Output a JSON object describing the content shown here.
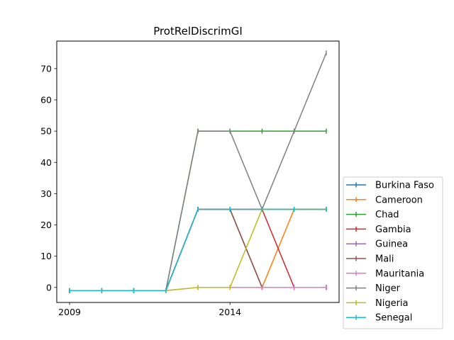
{
  "chart_data": {
    "type": "line",
    "title": "ProtRelDiscrimGI",
    "xlabel": "",
    "ylabel": "",
    "x": [
      2009,
      2010,
      2011,
      2012,
      2013,
      2014,
      2015,
      2016,
      2017
    ],
    "xticks": [
      2009,
      2014
    ],
    "yticks": [
      0,
      10,
      20,
      30,
      40,
      50,
      60,
      70
    ],
    "xlim": [
      2008.6,
      2017.4
    ],
    "ylim": [
      -4.8,
      78.8
    ],
    "grid": false,
    "legend_position": "outside-right-bottom",
    "marker": "|",
    "series": [
      {
        "name": "Burkina Faso",
        "color": "#1f77b4",
        "values": [
          -1,
          -1,
          -1,
          -1,
          25,
          25,
          25,
          25,
          25
        ]
      },
      {
        "name": "Cameroon",
        "color": "#ff7f0e",
        "values": [
          -1,
          -1,
          -1,
          -1,
          25,
          25,
          0,
          25,
          25
        ]
      },
      {
        "name": "Chad",
        "color": "#2ca02c",
        "values": [
          -1,
          -1,
          -1,
          -1,
          50,
          50,
          50,
          50,
          50
        ]
      },
      {
        "name": "Gambia",
        "color": "#d62728",
        "values": [
          -1,
          -1,
          -1,
          -1,
          25,
          25,
          25,
          0,
          0
        ]
      },
      {
        "name": "Guinea",
        "color": "#9467bd",
        "values": [
          -1,
          -1,
          -1,
          -1,
          25,
          25,
          0,
          0,
          0
        ]
      },
      {
        "name": "Mali",
        "color": "#8c564b",
        "values": [
          -1,
          -1,
          -1,
          -1,
          25,
          25,
          0,
          0,
          0
        ]
      },
      {
        "name": "Mauritania",
        "color": "#e377c2",
        "values": [
          -1,
          -1,
          -1,
          -1,
          0,
          0,
          0,
          0,
          0
        ]
      },
      {
        "name": "Niger",
        "color": "#7f7f7f",
        "values": [
          -1,
          -1,
          -1,
          -1,
          50,
          50,
          25,
          50,
          75
        ]
      },
      {
        "name": "Nigeria",
        "color": "#bcbd22",
        "values": [
          -1,
          -1,
          -1,
          -1,
          0,
          0,
          25,
          25,
          25
        ]
      },
      {
        "name": "Senegal",
        "color": "#17becf",
        "values": [
          -1,
          -1,
          -1,
          -1,
          25,
          25,
          25,
          25,
          25
        ]
      }
    ]
  }
}
